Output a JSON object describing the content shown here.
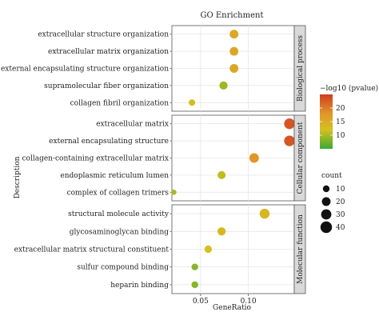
{
  "chart_data": {
    "type": "scatter",
    "title": "GO Enrichment",
    "xlabel": "GeneRatio",
    "ylabel": "Description",
    "xlim": [
      0.02,
      0.148
    ],
    "xticks": [
      0.05,
      0.1
    ],
    "xtick_labels": [
      "0.05",
      "0.10"
    ],
    "grid": true,
    "panels": [
      {
        "name": "Biological process",
        "points": [
          {
            "term": "extracellular structure organization",
            "x": 0.085,
            "pvalue_log": 15.5,
            "count": 20
          },
          {
            "term": "extracellular matrix organization",
            "x": 0.085,
            "pvalue_log": 15.5,
            "count": 20
          },
          {
            "term": "external encapsulating structure organization",
            "x": 0.085,
            "pvalue_log": 15.5,
            "count": 20
          },
          {
            "term": "supramolecular fiber organization",
            "x": 0.074,
            "pvalue_log": 9.5,
            "count": 17
          },
          {
            "term": "collagen fibril organization",
            "x": 0.041,
            "pvalue_log": 12.5,
            "count": 9
          }
        ]
      },
      {
        "name": "Cellular component",
        "points": [
          {
            "term": "extracellular matrix",
            "x": 0.143,
            "pvalue_log": 23,
            "count": 33
          },
          {
            "term": "external encapsulating structure",
            "x": 0.143,
            "pvalue_log": 23,
            "count": 33
          },
          {
            "term": "collagen-containing extracellular matrix",
            "x": 0.106,
            "pvalue_log": 18,
            "count": 25
          },
          {
            "term": "endoplasmic reticulum lumen",
            "x": 0.072,
            "pvalue_log": 11,
            "count": 16
          },
          {
            "term": "complex of collagen trimers",
            "x": 0.022,
            "pvalue_log": 10,
            "count": 5
          }
        ]
      },
      {
        "name": "Molecular function",
        "points": [
          {
            "term": "structural molecule activity",
            "x": 0.117,
            "pvalue_log": 13.5,
            "count": 28
          },
          {
            "term": "glycosaminoglycan binding",
            "x": 0.072,
            "pvalue_log": 13.5,
            "count": 17
          },
          {
            "term": "extracellular matrix structural constituent",
            "x": 0.058,
            "pvalue_log": 12,
            "count": 13
          },
          {
            "term": "sulfur compound binding",
            "x": 0.044,
            "pvalue_log": 8.5,
            "count": 10
          },
          {
            "term": "heparin binding",
            "x": 0.044,
            "pvalue_log": 8.5,
            "count": 10
          }
        ]
      }
    ],
    "color_legend": {
      "title": "−log10 (pvalue)",
      "range": [
        5,
        25
      ],
      "ticks": [
        10,
        15,
        20
      ],
      "colors": [
        "#3caa32",
        "#d4c01f",
        "#e0962a",
        "#d03c20"
      ]
    },
    "size_legend": {
      "title": "count",
      "values": [
        10,
        20,
        30,
        40
      ]
    }
  }
}
